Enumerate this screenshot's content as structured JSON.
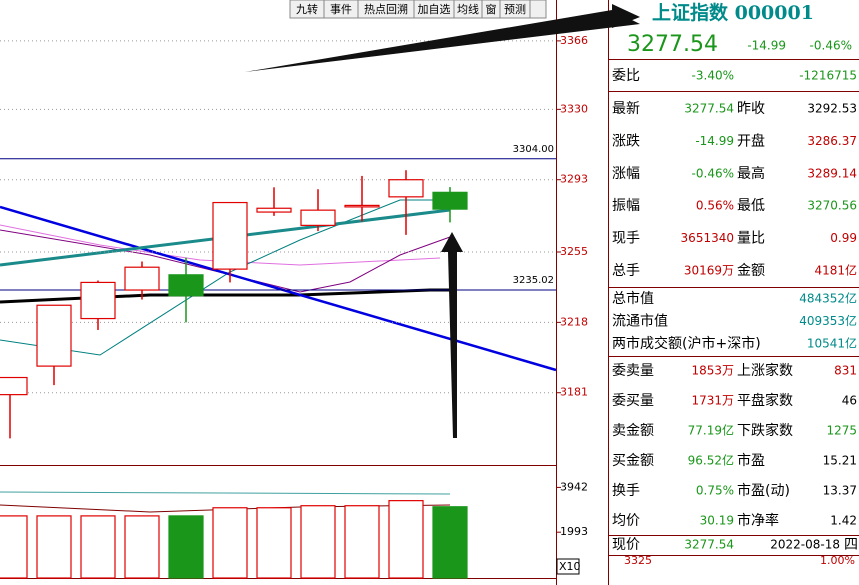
{
  "toolbar": [
    "九转",
    "事件",
    "热点回溯",
    "加自选",
    "均线",
    "窗",
    "预测"
  ],
  "chart_data": {
    "type": "candlestick",
    "open": [
      3180,
      3195,
      3220,
      3235,
      3243,
      3246,
      3276,
      3269,
      3279,
      3284,
      3286.37
    ],
    "high": [
      3189,
      3227,
      3240,
      3250,
      3252,
      3281,
      3289,
      3288,
      3295,
      3298,
      3289.14
    ],
    "low": [
      3157,
      3185,
      3214,
      3230,
      3218,
      3239,
      3274,
      3266,
      3271,
      3264,
      3270.56
    ],
    "close": [
      3189,
      3227,
      3239,
      3247,
      3232,
      3281,
      3278,
      3277,
      3279.5,
      3293,
      3277.54
    ],
    "ylim": [
      3143,
      3387.5
    ],
    "yticks": [
      3366,
      3330,
      3293,
      3255,
      3218,
      3181
    ],
    "ref_lines": [
      {
        "value": 3304.0,
        "label": "3304.00"
      },
      {
        "value": 3235.02,
        "label": "3235.02"
      }
    ],
    "up_color": "#e00000",
    "down_color": "#1a961a",
    "volume": {
      "values": [
        2702,
        2702,
        2702,
        2702,
        2702,
        3056,
        3056,
        3145,
        3145,
        3366,
        3100
      ],
      "ylim": [
        0,
        4873
      ],
      "yticks": [
        3942,
        1993
      ],
      "unit_label": "X10"
    }
  },
  "quote": {
    "title": "上证指数 000001",
    "price": "3277.54",
    "change": "-14.99",
    "change_pct": "-0.46%",
    "ratio": {
      "label": "委比",
      "pct": "-3.40%",
      "diff": "-1216715"
    },
    "pairs": [
      [
        "最新",
        "3277.54",
        "昨收",
        "3292.53"
      ],
      [
        "涨跌",
        "-14.99",
        "开盘",
        "3286.37"
      ],
      [
        "涨幅",
        "-0.46%",
        "最高",
        "3289.14"
      ],
      [
        "振幅",
        "0.56%",
        "最低",
        "3270.56"
      ],
      [
        "现手",
        "3651340",
        "量比",
        "0.99"
      ],
      [
        "总手",
        "30169万",
        "金额",
        "4181亿"
      ]
    ],
    "market": [
      [
        "总市值",
        "484352亿"
      ],
      [
        "流通市值",
        "409353亿"
      ],
      [
        "两市成交额(沪市+深市)",
        "10541亿"
      ]
    ],
    "pairs2": [
      [
        "委卖量",
        "1853万",
        "上涨家数",
        "831"
      ],
      [
        "委买量",
        "1731万",
        "平盘家数",
        "46"
      ],
      [
        "卖金额",
        "77.19亿",
        "下跌家数",
        "1275"
      ],
      [
        "买金额",
        "96.52亿",
        "市盈",
        "15.21"
      ],
      [
        "换手",
        "0.75%",
        "市盈(动)",
        "13.37"
      ],
      [
        "均价",
        "30.19",
        "市净率",
        "1.42"
      ]
    ],
    "footer": {
      "label": "现价",
      "price": "3277.54",
      "date": "2022-08-18",
      "weekday": "四"
    },
    "mini": {
      "left": "3325",
      "right": "1.00%"
    }
  }
}
